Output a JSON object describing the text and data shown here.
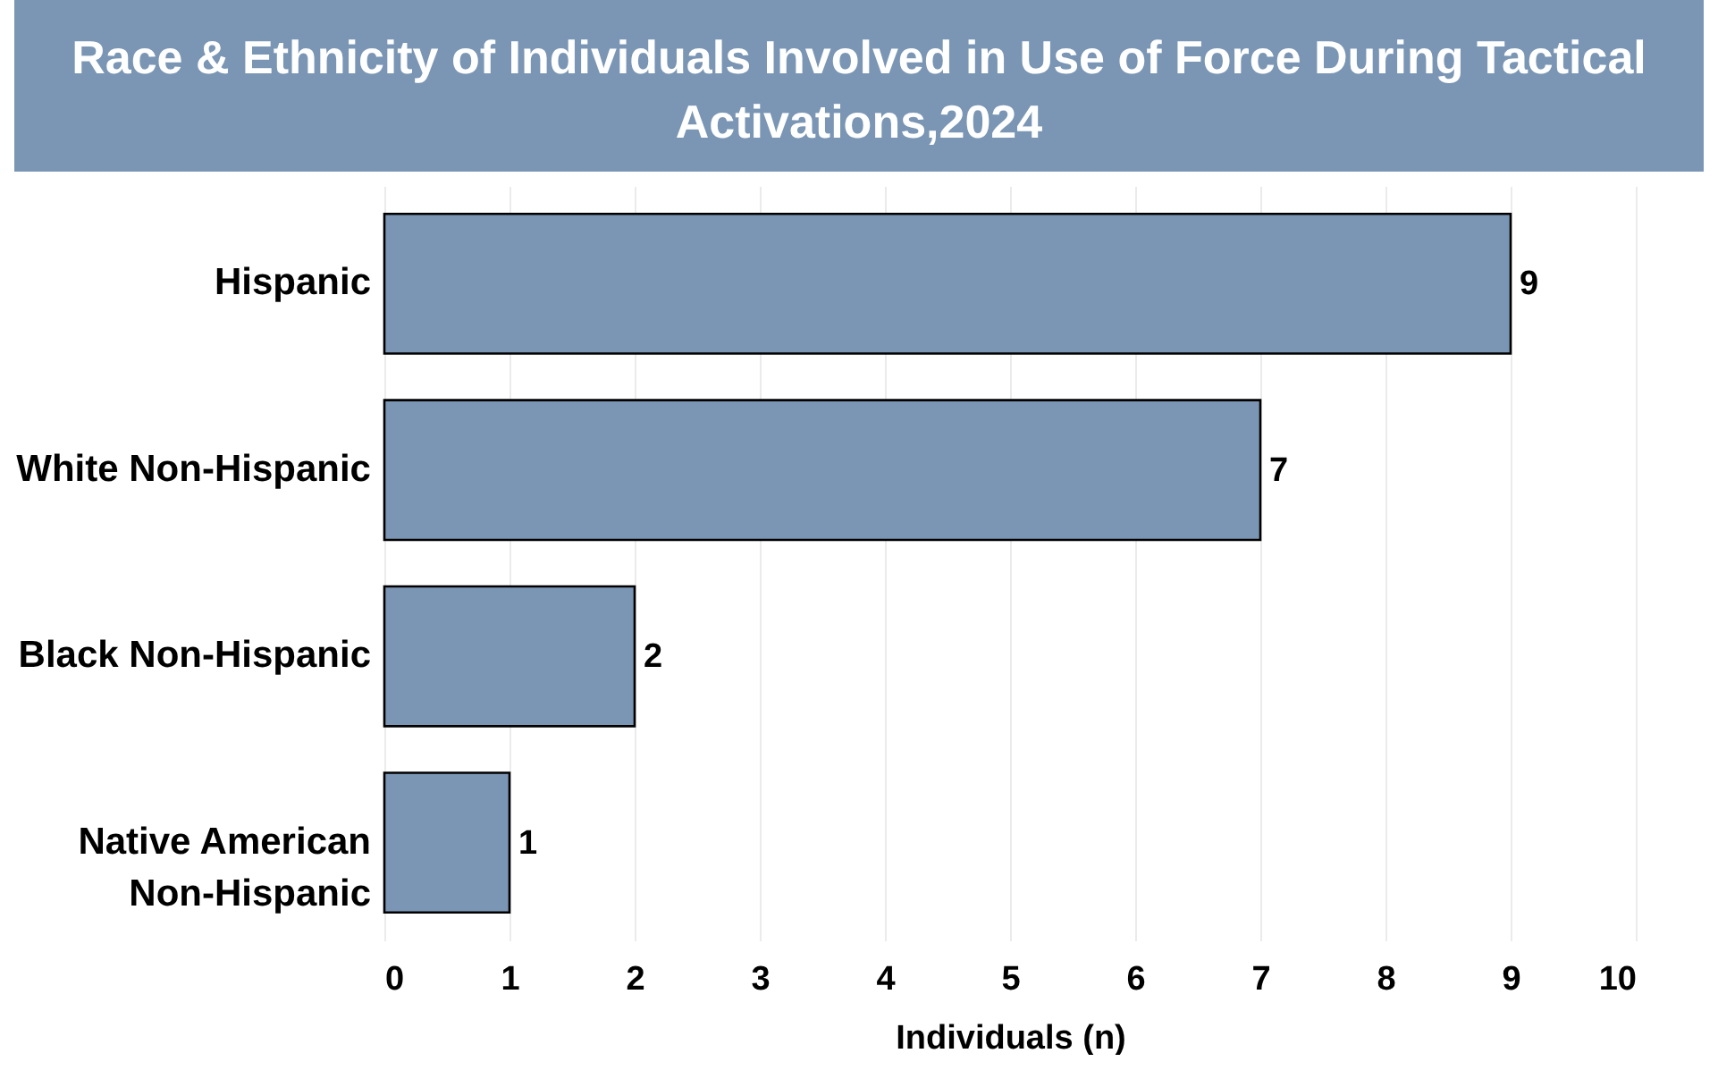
{
  "chart_data": {
    "type": "bar",
    "orientation": "horizontal",
    "title": "Race & Ethnicity of Individuals Involved in Use of Force During Tactical Activations,2024",
    "categories": [
      "Hispanic",
      "White Non-Hispanic",
      "Black Non-Hispanic",
      "Native American Non-Hispanic"
    ],
    "values": [
      9,
      7,
      2,
      1
    ],
    "color": "#7a96b4",
    "xlabel": "Individuals (n)",
    "xlim": [
      0,
      10
    ],
    "xticks": [
      0,
      1,
      2,
      3,
      4,
      5,
      6,
      7,
      8,
      9,
      10
    ],
    "grid": "x",
    "data_labels": true
  }
}
